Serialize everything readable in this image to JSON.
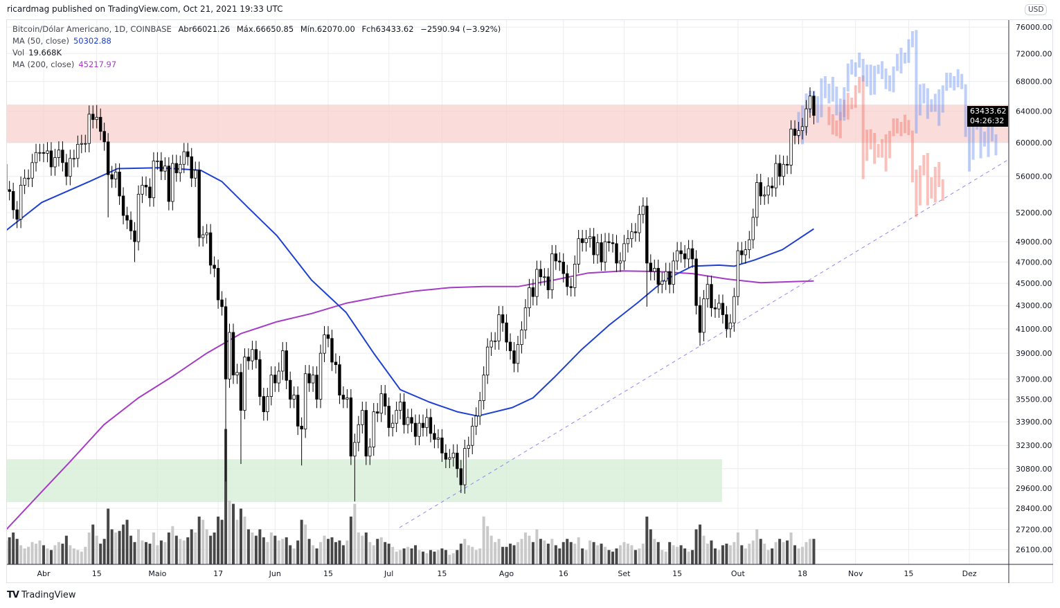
{
  "header": {
    "published": "ricardmag published on TradingView.com, Oct 21, 2021 19:33 UTC"
  },
  "legend": {
    "symbol": "Bitcoin/Dólar Americano, 1D, COINBASE",
    "open": "Abr66021.26",
    "high": "Máx.66650.85",
    "low": "Mín.62070.00",
    "close": "Fch63433.62",
    "change": "−2590.94 (−3.92%)",
    "ma50_label": "MA (50, close)",
    "ma50_value": "50302.88",
    "vol_label": "Vol",
    "vol_value": "19.668K",
    "ma200_label": "MA (200, close)",
    "ma200_value": "45217.97"
  },
  "price_axis": {
    "currency": "USD",
    "last_price": "63433.62",
    "countdown": "04:26:32",
    "ticks": [
      76000,
      72000,
      68000,
      64000,
      60000,
      56000,
      52000,
      49000,
      47000,
      45000,
      43000,
      41000,
      39000,
      37000,
      35500,
      33900,
      32300,
      30800,
      29600,
      28400,
      27200,
      26100
    ]
  },
  "footer": {
    "brand": "TradingView"
  },
  "colors": {
    "ma50": "#1e40d0",
    "ma200": "#a53bc4",
    "resistance_zone": "#f8cfcb",
    "support_zone": "#d4ecd4",
    "up_volume": "#c9c9c9",
    "down_volume": "#474747",
    "projection_up": "#6e94f5",
    "projection_down": "#f47368",
    "trendline": "#8f86f0"
  },
  "chart_data": {
    "type": "candlestick",
    "title": "Bitcoin/Dólar Americano, 1D, COINBASE",
    "scale": "logarithmic",
    "start_date": "2021-03-22",
    "first_open": 57400,
    "default_wick_percent": 1.8,
    "x_ticks": [
      {
        "label": "Abr",
        "day": 10
      },
      {
        "label": "15",
        "day": 24
      },
      {
        "label": "Maio",
        "day": 40
      },
      {
        "label": "17",
        "day": 56
      },
      {
        "label": "Jun",
        "day": 71
      },
      {
        "label": "15",
        "day": 85
      },
      {
        "label": "Jul",
        "day": 101
      },
      {
        "label": "15",
        "day": 115
      },
      {
        "label": "Ago",
        "day": 132
      },
      {
        "label": "16",
        "day": 147
      },
      {
        "label": "Set",
        "day": 163
      },
      {
        "label": "15",
        "day": 177
      },
      {
        "label": "Out",
        "day": 193
      },
      {
        "label": "18",
        "day": 210
      },
      {
        "label": "Nov",
        "day": 224
      },
      {
        "label": "15",
        "day": 238
      },
      {
        "label": "Dez",
        "day": 254
      }
    ],
    "closes": [
      54500,
      54300,
      52300,
      51300,
      55000,
      55800,
      55800,
      57600,
      58800,
      58800,
      58700,
      59000,
      57100,
      58200,
      59100,
      57600,
      56000,
      58100,
      58100,
      59800,
      59900,
      59900,
      63600,
      62900,
      63200,
      61400,
      60100,
      56200,
      55700,
      56500,
      53800,
      51700,
      51200,
      50100,
      49000,
      54000,
      55000,
      54800,
      53600,
      57800,
      57800,
      56600,
      57200,
      53200,
      57500,
      56400,
      57400,
      58900,
      58300,
      55800,
      56700,
      49400,
      49700,
      49900,
      46700,
      46400,
      43500,
      42900,
      37000,
      40700,
      37300,
      37500,
      34700,
      38700,
      38400,
      39300,
      38500,
      35700,
      34600,
      35700,
      37300,
      36700,
      37600,
      39200,
      36900,
      35500,
      35800,
      33600,
      33400,
      37400,
      36700,
      37300,
      35500,
      39000,
      40500,
      40200,
      38300,
      38100,
      35800,
      35500,
      35600,
      31600,
      32500,
      33700,
      34700,
      31600,
      32200,
      34600,
      34500,
      35900,
      35000,
      33500,
      33800,
      34700,
      35300,
      33700,
      34200,
      33800,
      32900,
      33800,
      33500,
      34200,
      33100,
      32700,
      32800,
      31800,
      31400,
      31500,
      31800,
      30800,
      29800,
      32100,
      32300,
      33600,
      34300,
      35400,
      37300,
      39500,
      40000,
      40000,
      42200,
      41500,
      39900,
      39200,
      38200,
      39700,
      40900,
      42800,
      44600,
      43800,
      46300,
      45600,
      45600,
      44400,
      47800,
      47100,
      47000,
      45900,
      44700,
      44600,
      46800,
      49300,
      48900,
      49300,
      49500,
      47700,
      48900,
      47000,
      49000,
      48900,
      48800,
      46900,
      47100,
      48800,
      49300,
      50000,
      49900,
      51800,
      52700,
      46900,
      46100,
      46400,
      44900,
      45200,
      46100,
      44900,
      47100,
      48100,
      47800,
      47300,
      48300,
      47300,
      43000,
      40700,
      43600,
      44900,
      42800,
      42700,
      43200,
      42200,
      41000,
      41500,
      43800,
      48100,
      47700,
      48200,
      49200,
      51500,
      55300,
      53800,
      53900,
      54900,
      54700,
      57500,
      56000,
      57400,
      57300,
      61700,
      60900,
      61500,
      62000,
      64300,
      66000,
      63434
    ],
    "low_overrides": {
      "27": 51500,
      "34": 47000,
      "58": 30000,
      "62": 31100,
      "78": 31000,
      "92": 28800,
      "120": 29300,
      "169": 42900,
      "183": 39600
    },
    "high_overrides": {
      "24": 64800,
      "213": 66650
    },
    "volume_k": [
      15,
      17,
      20,
      16,
      12,
      10,
      11,
      14,
      13,
      15,
      12,
      10,
      9,
      12,
      14,
      13,
      18,
      12,
      10,
      9,
      8,
      11,
      20,
      25,
      18,
      13,
      16,
      35,
      22,
      20,
      21,
      25,
      28,
      18,
      14,
      22,
      15,
      14,
      13,
      20,
      12,
      15,
      14,
      20,
      24,
      18,
      16,
      15,
      17,
      22,
      20,
      30,
      28,
      22,
      18,
      20,
      30,
      28,
      85,
      40,
      38,
      28,
      35,
      30,
      22,
      20,
      18,
      22,
      17,
      14,
      20,
      18,
      15,
      16,
      17,
      12,
      10,
      15,
      28,
      25,
      16,
      12,
      10,
      14,
      18,
      16,
      17,
      14,
      15,
      12,
      15,
      30,
      38,
      20,
      18,
      20,
      14,
      12,
      16,
      17,
      14,
      13,
      11,
      8,
      9,
      10,
      11,
      10,
      12,
      9,
      8,
      7,
      9,
      8,
      9,
      10,
      9,
      6,
      7,
      9,
      13,
      16,
      12,
      11,
      9,
      10,
      30,
      24,
      18,
      14,
      16,
      11,
      11,
      13,
      12,
      14,
      16,
      20,
      18,
      14,
      22,
      16,
      15,
      13,
      16,
      12,
      10,
      14,
      16,
      14,
      13,
      17,
      10,
      9,
      15,
      14,
      12,
      13,
      11,
      9,
      8,
      10,
      12,
      14,
      13,
      12,
      9,
      10,
      13,
      30,
      22,
      16,
      14,
      9,
      8,
      14,
      12,
      11,
      12,
      10,
      8,
      9,
      22,
      25,
      18,
      13,
      15,
      10,
      9,
      12,
      13,
      12,
      14,
      20,
      12,
      10,
      13,
      15,
      22,
      16,
      13,
      9,
      10,
      14,
      16,
      14,
      15,
      20,
      12,
      10,
      11,
      14,
      16,
      16
    ],
    "ma50": {
      "day": [
        0,
        9.5,
        22,
        29.5,
        40.5,
        51.4,
        57,
        64,
        71.5,
        80.6,
        89.7,
        97,
        104,
        111.6,
        119,
        124.4,
        133.5,
        139,
        144.5,
        151.8,
        159,
        166.4,
        173.7,
        181,
        188,
        192,
        197.4,
        204.7,
        213
      ],
      "value": [
        50100,
        53100,
        55400,
        56900,
        57000,
        56700,
        55400,
        52500,
        49600,
        45300,
        42400,
        39000,
        36200,
        35300,
        34600,
        34300,
        34900,
        35600,
        37100,
        39300,
        41300,
        43200,
        45300,
        46600,
        46700,
        46600,
        47200,
        48200,
        50303
      ]
    },
    "ma200": {
      "day": [
        0,
        9.5,
        16.8,
        25.9,
        35,
        44,
        53,
        62,
        71.5,
        80.6,
        89.7,
        98.9,
        108,
        117,
        126,
        135,
        144.5,
        153.6,
        162.7,
        171.9,
        181,
        190,
        199,
        213
      ],
      "value": [
        27160,
        29380,
        31200,
        33700,
        35600,
        37200,
        39000,
        40600,
        41600,
        42300,
        43200,
        43800,
        44300,
        44600,
        44700,
        44700,
        45300,
        45960,
        46150,
        46100,
        45900,
        45400,
        45050,
        45218
      ]
    },
    "projection_up": {
      "start_day": 209,
      "ranges": [
        [
          60650,
          63890
        ],
        [
          59800,
          64740
        ],
        [
          61170,
          66350
        ],
        [
          63800,
          66720
        ],
        [
          63440,
          66720
        ],
        [
          62490,
          65970
        ],
        [
          63200,
          68420
        ],
        [
          65720,
          68740
        ],
        [
          65010,
          67680
        ],
        [
          65260,
          68650
        ],
        [
          63440,
          67290
        ],
        [
          62780,
          65660
        ],
        [
          62760,
          67200
        ],
        [
          66600,
          70540
        ],
        [
          68970,
          71120
        ],
        [
          68670,
          70710
        ],
        [
          69950,
          72130
        ],
        [
          68000,
          71220
        ],
        [
          67290,
          70380
        ],
        [
          66120,
          70380
        ],
        [
          66190,
          70210
        ],
        [
          69060,
          70380
        ],
        [
          68330,
          70880
        ],
        [
          66940,
          69820
        ],
        [
          66660,
          68840
        ],
        [
          66500,
          70110
        ],
        [
          69490,
          71950
        ],
        [
          69130,
          72850
        ],
        [
          70540,
          72130
        ],
        [
          70640,
          74130
        ],
        [
          72920,
          75370
        ],
        [
          61140,
          75550
        ],
        [
          63440,
          67610
        ],
        [
          65010,
          67710
        ],
        [
          62990,
          67070
        ],
        [
          63890,
          65570
        ],
        [
          63920,
          66310
        ],
        [
          62100,
          66910
        ],
        [
          63800,
          67460
        ],
        [
          66720,
          69220
        ],
        [
          67130,
          69220
        ],
        [
          66760,
          68740
        ],
        [
          67200,
          69710
        ],
        [
          66940,
          69060
        ],
        [
          60710,
          67610
        ],
        [
          56560,
          62250
        ],
        [
          57940,
          62870
        ],
        [
          61610,
          64250
        ],
        [
          58110,
          64490
        ],
        [
          59520,
          61370
        ],
        [
          58270,
          62690
        ],
        [
          60140,
          63350
        ],
        [
          58460,
          61030
        ]
      ]
    },
    "projection_down": {
      "start_day": 217,
      "ranges": [
        [
          62190,
          64560
        ],
        [
          61000,
          63590
        ],
        [
          60800,
          62780
        ],
        [
          60540,
          63890
        ],
        [
          63230,
          65500
        ],
        [
          62900,
          66440
        ],
        [
          64250,
          65780
        ],
        [
          64430,
          67460
        ],
        [
          66410,
          68650
        ],
        [
          55690,
          68840
        ],
        [
          57800,
          61610
        ],
        [
          59180,
          61670
        ],
        [
          57450,
          61200
        ],
        [
          58190,
          59860
        ],
        [
          58190,
          60430
        ],
        [
          56560,
          61030
        ],
        [
          58110,
          61460
        ],
        [
          60800,
          63050
        ],
        [
          61140,
          63050
        ],
        [
          60800,
          62600
        ],
        [
          61170,
          63530
        ],
        [
          60940,
          62850
        ],
        [
          55320,
          61500
        ],
        [
          51540,
          56780
        ],
        [
          52770,
          57260
        ],
        [
          56110,
          58490
        ],
        [
          52770,
          58740
        ],
        [
          53520,
          55900
        ],
        [
          53070,
          57100
        ],
        [
          54800,
          57670
        ],
        [
          53270,
          55660
        ]
      ]
    },
    "resistance_zone": {
      "low": 60000,
      "high": 64860,
      "from_day": 0,
      "to_day": 264
    },
    "support_zone": {
      "low": 28770,
      "high": 31400,
      "from_day": 0,
      "to_day": 188.8
    },
    "trendline": [
      {
        "day": 103.8,
        "price": 27300
      },
      {
        "day": 264.4,
        "price": 57990
      }
    ]
  }
}
